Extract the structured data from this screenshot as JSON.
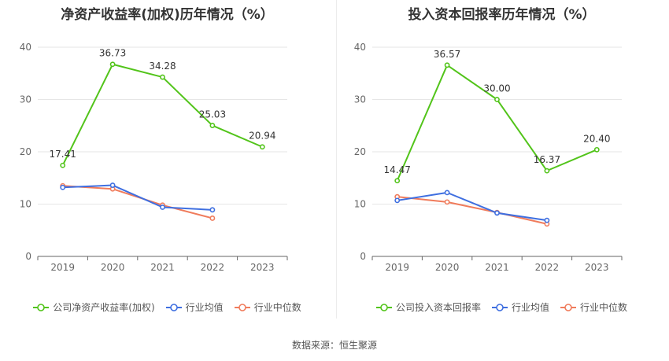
{
  "source_text": "数据来源：恒生聚源",
  "chart_data": [
    {
      "type": "line",
      "title": "净资产收益率(加权)历年情况（%）",
      "categories": [
        "2019",
        "2020",
        "2021",
        "2022",
        "2023"
      ],
      "ylim": [
        0,
        40
      ],
      "yticks": [
        0,
        10,
        20,
        30,
        40
      ],
      "grid": true,
      "legend_position": "bottom",
      "series": [
        {
          "name": "公司净资产收益率(加权)",
          "color": "#52c41a",
          "values": [
            17.41,
            36.73,
            34.28,
            25.03,
            20.94
          ],
          "show_labels": true
        },
        {
          "name": "行业均值",
          "color": "#3f6fe0",
          "values": [
            13.2,
            13.6,
            9.4,
            8.9,
            null
          ],
          "show_labels": false
        },
        {
          "name": "行业中位数",
          "color": "#f07c5c",
          "values": [
            13.5,
            12.9,
            9.8,
            7.3,
            null
          ],
          "show_labels": false
        }
      ]
    },
    {
      "type": "line",
      "title": "投入资本回报率历年情况（%）",
      "categories": [
        "2019",
        "2020",
        "2021",
        "2022",
        "2023"
      ],
      "ylim": [
        0,
        40
      ],
      "yticks": [
        0,
        10,
        20,
        30,
        40
      ],
      "grid": true,
      "legend_position": "bottom",
      "series": [
        {
          "name": "公司投入资本回报率",
          "color": "#52c41a",
          "values": [
            14.47,
            36.57,
            30.0,
            16.37,
            20.4
          ],
          "value_labels": [
            "14.47",
            "36.57",
            "30.00",
            "16.37",
            "20.40"
          ],
          "show_labels": true
        },
        {
          "name": "行业均值",
          "color": "#3f6fe0",
          "values": [
            10.7,
            12.2,
            8.3,
            6.9,
            null
          ],
          "show_labels": false
        },
        {
          "name": "行业中位数",
          "color": "#f07c5c",
          "values": [
            11.4,
            10.4,
            8.4,
            6.2,
            null
          ],
          "show_labels": false
        }
      ]
    }
  ]
}
